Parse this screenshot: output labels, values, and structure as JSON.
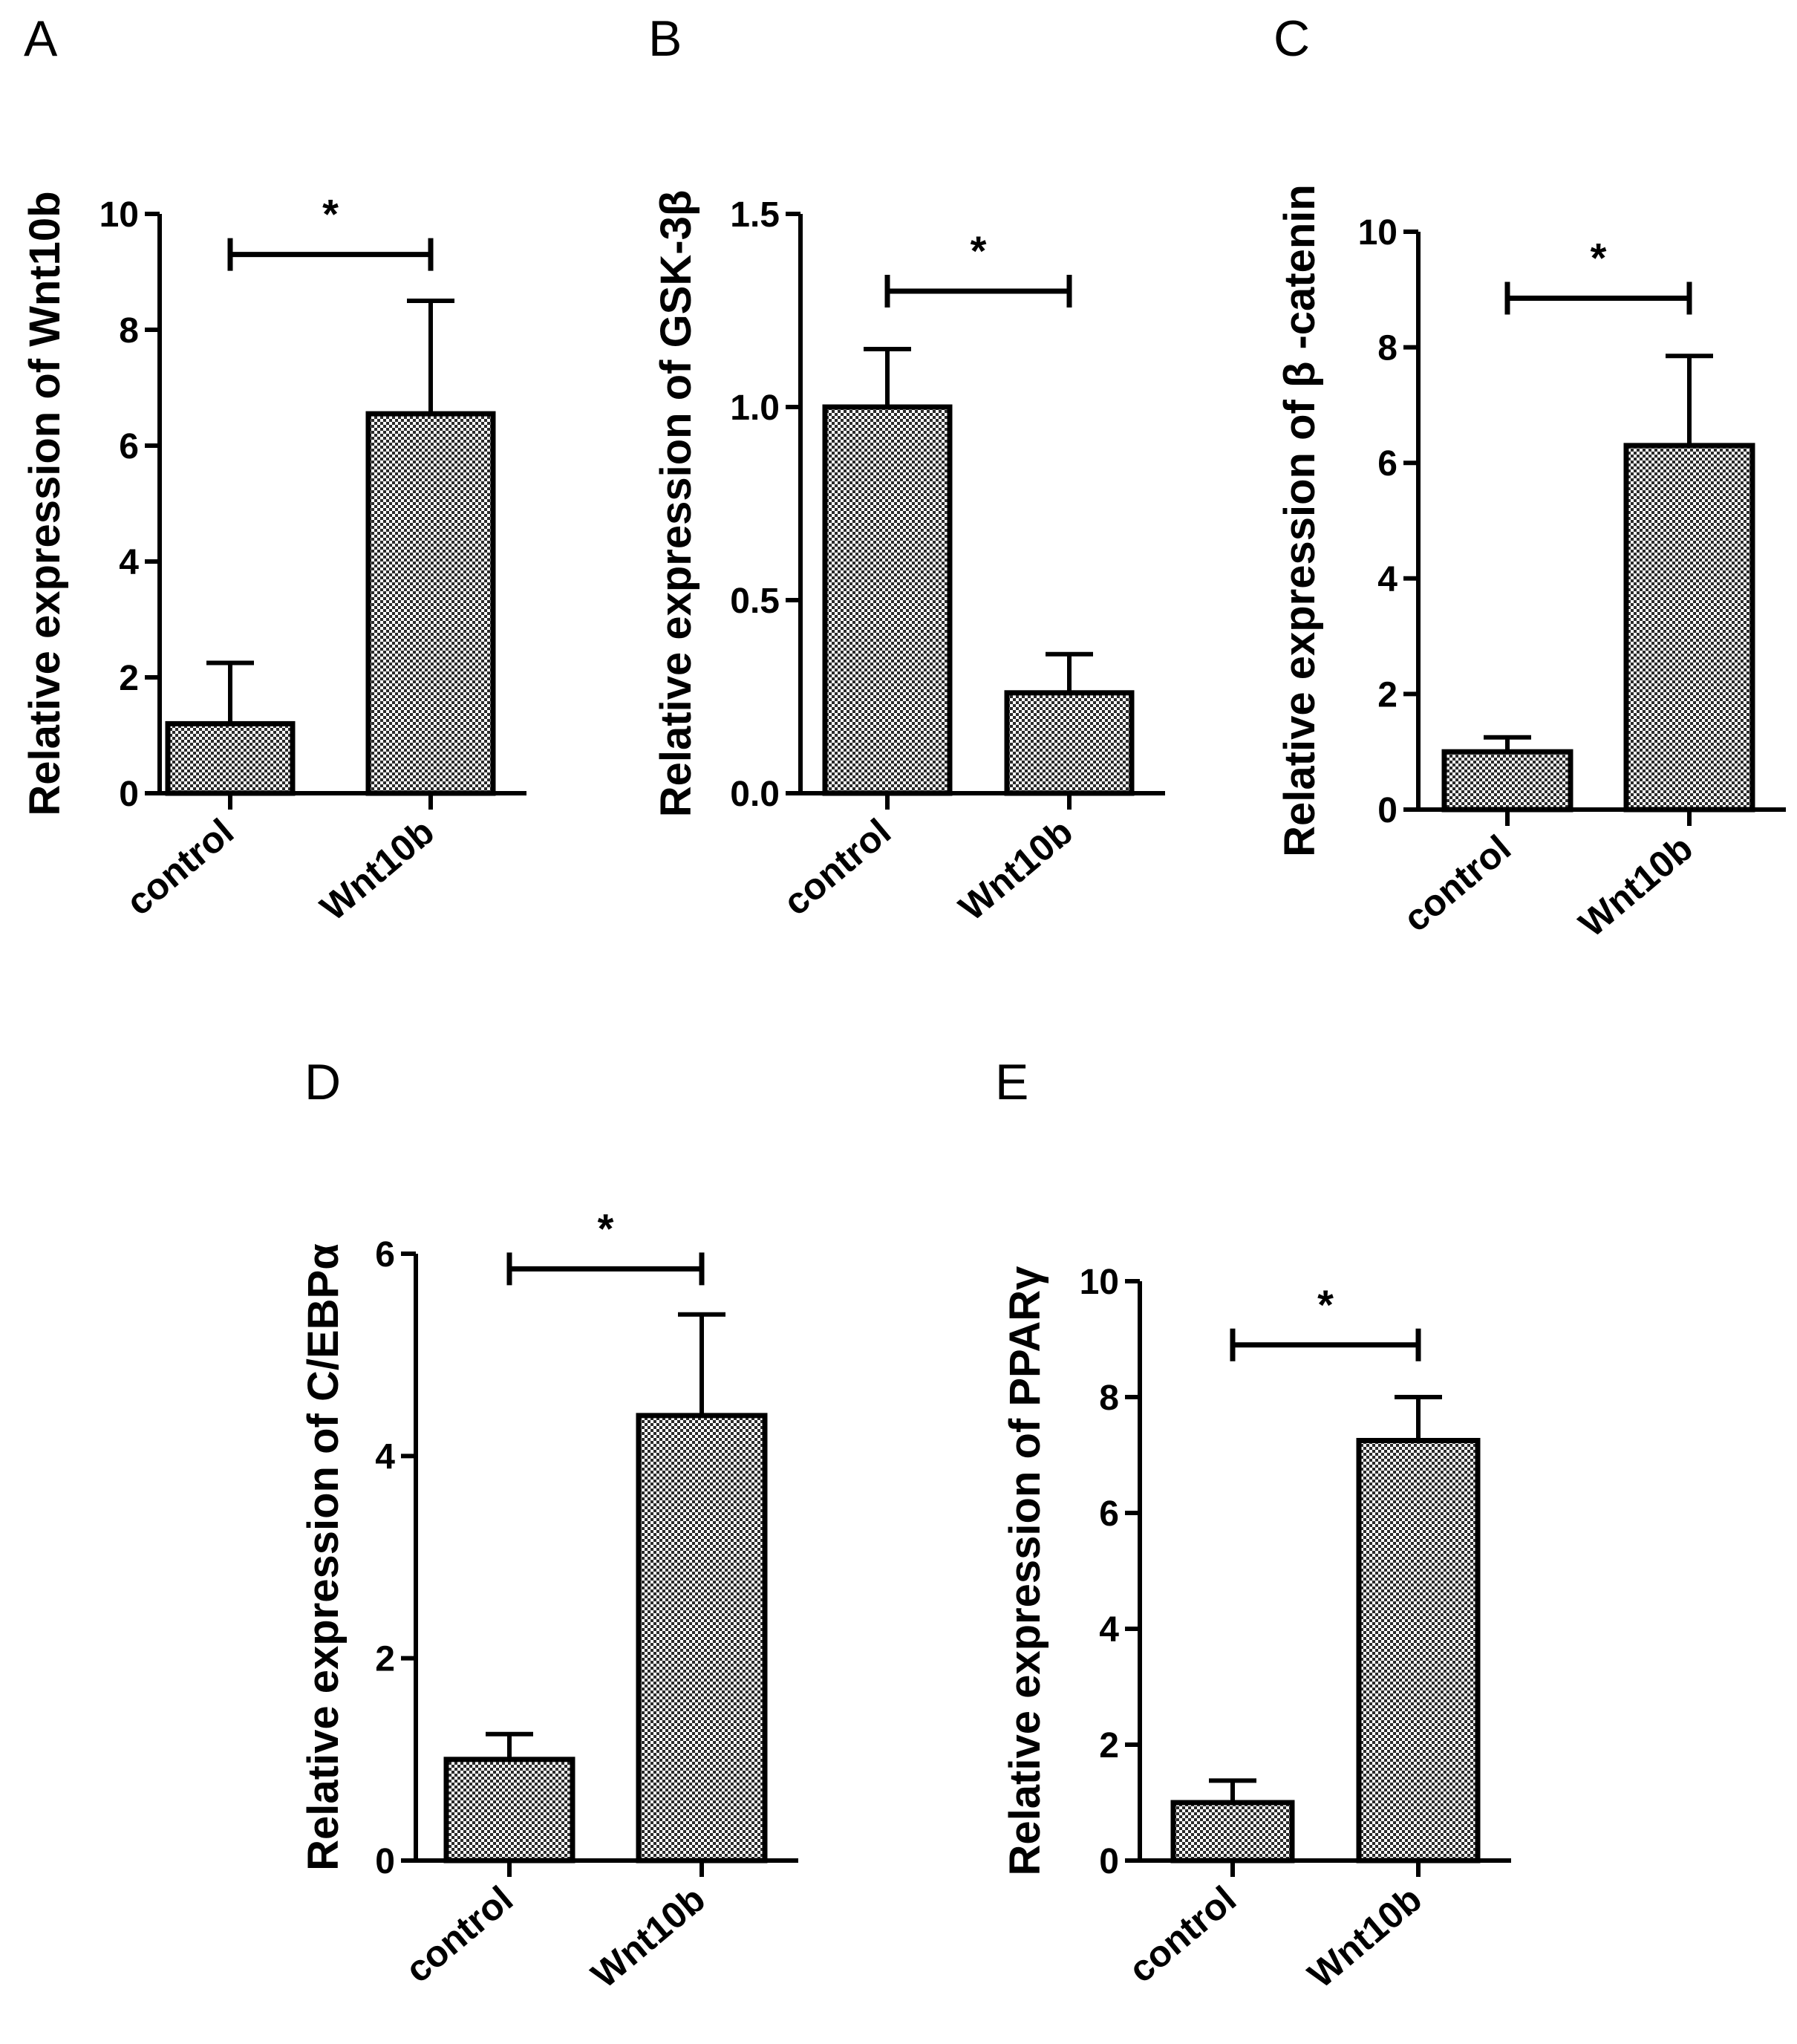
{
  "figure": {
    "colors": {
      "ink": "#000000",
      "bar_light": "#ffffff",
      "bar_dark": "#2b2b2b",
      "background": "#ffffff"
    }
  },
  "chart_data": [
    {
      "panel": "A",
      "type": "bar",
      "categories": [
        "control",
        "Wnt10b"
      ],
      "values": [
        1.2,
        6.55
      ],
      "errors": [
        1.05,
        1.95
      ],
      "ylabel": "Relative expression of Wnt10b",
      "ylim": [
        0,
        10
      ],
      "yticks": [
        0,
        2,
        4,
        6,
        8,
        10
      ],
      "ytick_labels": [
        "0",
        "2",
        "4",
        "6",
        "8",
        "10"
      ],
      "significance": {
        "between": [
          0,
          1
        ],
        "value": 9.3,
        "label": "*"
      }
    },
    {
      "panel": "B",
      "type": "bar",
      "categories": [
        "control",
        "Wnt10b"
      ],
      "values": [
        1.0,
        0.26
      ],
      "errors": [
        0.15,
        0.1
      ],
      "ylabel": "Relative expression of GSK-3β",
      "ylim": [
        0,
        1.5
      ],
      "yticks": [
        0,
        0.5,
        1.0,
        1.5
      ],
      "ytick_labels": [
        "0.0",
        "0.5",
        "1.0",
        "1.5"
      ],
      "significance": {
        "between": [
          0,
          1
        ],
        "value": 1.3,
        "label": "*"
      }
    },
    {
      "panel": "C",
      "type": "bar",
      "categories": [
        "control",
        "Wnt10b"
      ],
      "values": [
        1.0,
        6.3
      ],
      "errors": [
        0.25,
        1.55
      ],
      "ylabel": "Relative expression of β -catenin",
      "ylim": [
        0,
        10
      ],
      "yticks": [
        0,
        2,
        4,
        6,
        8,
        10
      ],
      "ytick_labels": [
        "0",
        "2",
        "4",
        "6",
        "8",
        "10"
      ],
      "significance": {
        "between": [
          0,
          1
        ],
        "value": 8.85,
        "label": "*"
      }
    },
    {
      "panel": "D",
      "type": "bar",
      "categories": [
        "control",
        "Wnt10b"
      ],
      "values": [
        1.0,
        4.4
      ],
      "errors": [
        0.25,
        1.0
      ],
      "ylabel": "Relative expression of C/EBPα",
      "ylim": [
        0,
        6
      ],
      "yticks": [
        0,
        2,
        4,
        6
      ],
      "ytick_labels": [
        "0",
        "2",
        "4",
        "6"
      ],
      "significance": {
        "between": [
          0,
          1
        ],
        "value": 5.85,
        "label": "*"
      }
    },
    {
      "panel": "E",
      "type": "bar",
      "categories": [
        "control",
        "Wnt10b"
      ],
      "values": [
        1.0,
        7.25
      ],
      "errors": [
        0.38,
        0.75
      ],
      "ylabel": "Relative expression of PPARγ",
      "ylim": [
        0,
        10
      ],
      "yticks": [
        0,
        2,
        4,
        6,
        8,
        10
      ],
      "ytick_labels": [
        "0",
        "2",
        "4",
        "6",
        "8",
        "10"
      ],
      "significance": {
        "between": [
          0,
          1
        ],
        "value": 8.9,
        "label": "*"
      }
    }
  ]
}
